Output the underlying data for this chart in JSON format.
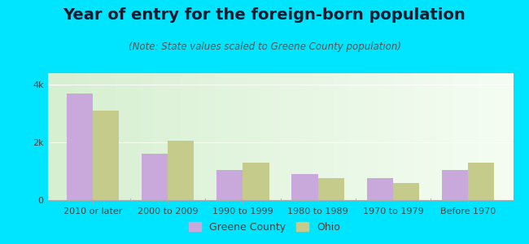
{
  "title": "Year of entry for the foreign-born population",
  "subtitle": "(Note: State values scaled to Greene County population)",
  "categories": [
    "2010 or later",
    "2000 to 2009",
    "1990 to 1999",
    "1980 to 1989",
    "1970 to 1979",
    "Before 1970"
  ],
  "greene_county": [
    3700,
    1600,
    1050,
    900,
    750,
    1050
  ],
  "ohio": [
    3100,
    2050,
    1300,
    750,
    600,
    1300
  ],
  "greene_color": "#c9a8dc",
  "ohio_color": "#c5cb8a",
  "background_color_left": "#d6efd0",
  "background_color_right": "#f0f8ee",
  "outer_background": "#00e5ff",
  "ylim": [
    0,
    4400
  ],
  "ytick_labels": [
    "0",
    "2k",
    "4k"
  ],
  "ytick_vals": [
    0,
    2000,
    4000
  ],
  "bar_width": 0.35,
  "legend_greene": "Greene County",
  "legend_ohio": "Ohio",
  "title_fontsize": 14,
  "subtitle_fontsize": 8.5,
  "tick_fontsize": 8,
  "legend_fontsize": 9
}
